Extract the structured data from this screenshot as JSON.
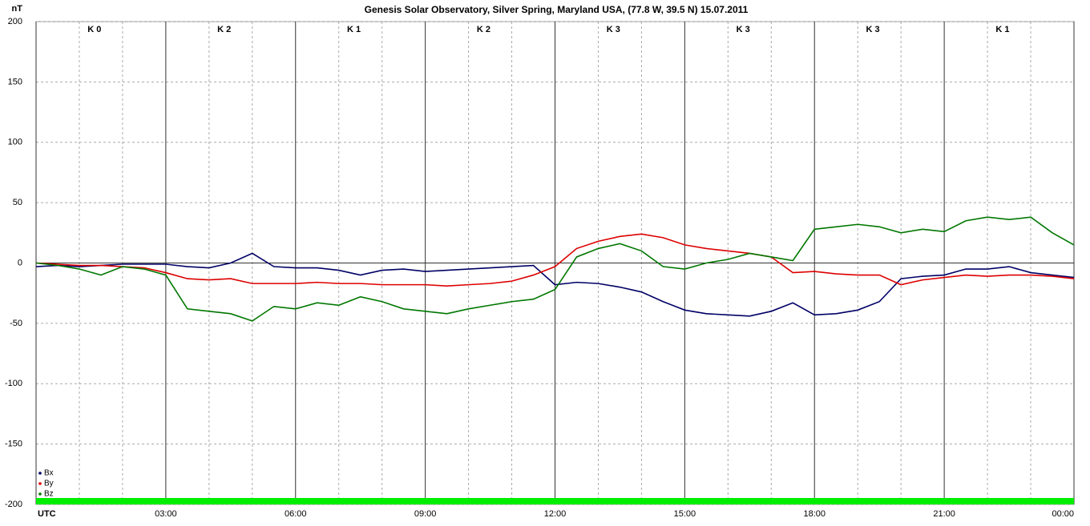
{
  "chart_data": {
    "type": "line",
    "title": "Genesis Solar Observatory, Silver Spring, Maryland USA, (77.8 W, 39.5 N)  15.07.2011",
    "y_label": "nT",
    "k_labels": [
      "K 0",
      "K 2",
      "K 1",
      "K 2",
      "K 3",
      "K 3",
      "K 3",
      "K 1"
    ],
    "x": [
      0,
      0.5,
      1,
      1.5,
      2,
      2.5,
      3,
      3.5,
      4,
      4.5,
      5,
      5.5,
      6,
      6.5,
      7,
      7.5,
      8,
      8.5,
      9,
      9.5,
      10,
      10.5,
      11,
      11.5,
      12,
      12.5,
      13,
      13.5,
      14,
      14.5,
      15,
      15.5,
      16,
      16.5,
      17,
      17.5,
      18,
      18.5,
      19,
      19.5,
      20,
      20.5,
      21,
      21.5,
      22,
      22.5,
      23,
      23.5,
      24
    ],
    "series": [
      {
        "name": "Bx",
        "color": "#000066",
        "values": [
          -3,
          -2,
          -3,
          -2,
          -1,
          -1,
          -1,
          -3,
          -4,
          0,
          8,
          -3,
          -4,
          -4,
          -6,
          -10,
          -6,
          -5,
          -7,
          -6,
          -5,
          -4,
          -3,
          -2,
          -18,
          -16,
          -17,
          -20,
          -24,
          -32,
          -39,
          -42,
          -43,
          -44,
          -40,
          -33,
          -43,
          -42,
          -39,
          -32,
          -13,
          -11,
          -10,
          -5,
          -5,
          -3,
          -8,
          -10,
          -12
        ]
      },
      {
        "name": "By",
        "color": "#dd0000",
        "values": [
          0,
          -1,
          -2,
          -2,
          -3,
          -4,
          -8,
          -13,
          -14,
          -13,
          -17,
          -17,
          -17,
          -16,
          -17,
          -17,
          -18,
          -18,
          -18,
          -19,
          -18,
          -17,
          -15,
          -10,
          -3,
          12,
          18,
          22,
          24,
          21,
          15,
          12,
          10,
          8,
          5,
          -8,
          -7,
          -9,
          -10,
          -10,
          -18,
          -14,
          -12,
          -10,
          -11,
          -10,
          -10,
          -11,
          -13
        ]
      },
      {
        "name": "Bz",
        "color": "#007700",
        "values": [
          0,
          -2,
          -5,
          -10,
          -3,
          -5,
          -10,
          -38,
          -40,
          -42,
          -48,
          -36,
          -38,
          -33,
          -35,
          -28,
          -32,
          -38,
          -40,
          -42,
          -38,
          -35,
          -32,
          -30,
          -22,
          5,
          12,
          16,
          10,
          -3,
          -5,
          0,
          3,
          8,
          5,
          2,
          28,
          30,
          32,
          30,
          25,
          28,
          26,
          35,
          38,
          36,
          38,
          25,
          15
        ]
      }
    ],
    "xlim": [
      0,
      24
    ],
    "xticks": [
      {
        "value": 0,
        "label": "UTC"
      },
      {
        "value": 3,
        "label": "03:00"
      },
      {
        "value": 6,
        "label": "06:00"
      },
      {
        "value": 9,
        "label": "09:00"
      },
      {
        "value": 12,
        "label": "12:00"
      },
      {
        "value": 15,
        "label": "15:00"
      },
      {
        "value": 18,
        "label": "18:00"
      },
      {
        "value": 21,
        "label": "21:00"
      },
      {
        "value": 24,
        "label": "00:00"
      }
    ],
    "ylim": [
      -200,
      200
    ],
    "yticks": [
      -200,
      -150,
      -100,
      -50,
      0,
      50,
      100,
      150,
      200
    ],
    "grid": true
  }
}
